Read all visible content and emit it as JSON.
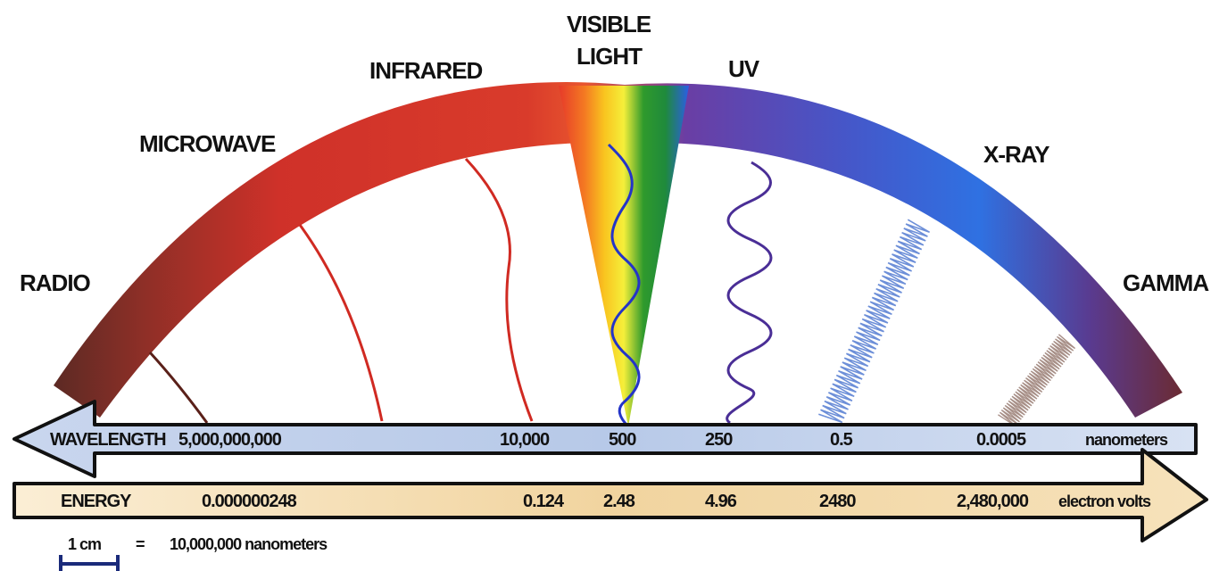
{
  "bands": {
    "radio": "RADIO",
    "microwave": "MICROWAVE",
    "infrared": "INFRARED",
    "visible_line1": "VISIBLE",
    "visible_line2": "LIGHT",
    "uv": "UV",
    "xray": "X-RAY",
    "gamma": "GAMMA"
  },
  "wavelength": {
    "label": "WAVELENGTH",
    "values": [
      "5,000,000,000",
      "10,000",
      "500",
      "250",
      "0.5",
      "0.0005"
    ],
    "unit": "nanometers"
  },
  "energy": {
    "label": "ENERGY",
    "values": [
      "0.000000248",
      "0.124",
      "2.48",
      "4.96",
      "2480",
      "2,480,000"
    ],
    "unit": "electron volts"
  },
  "scale": {
    "length": "1 cm",
    "equals": "=",
    "value": "10,000,000 nanometers"
  },
  "colors": {
    "radio": "#6e2a22",
    "microwave": "#d0312a",
    "infrared": "#d83a2c",
    "uv": "#6a3fa6",
    "xray": "#2f6fe0",
    "gamma": "#6b2d38",
    "wavelength_bar": "#b9cbe8",
    "energy_bar": "#f3d9a8"
  }
}
